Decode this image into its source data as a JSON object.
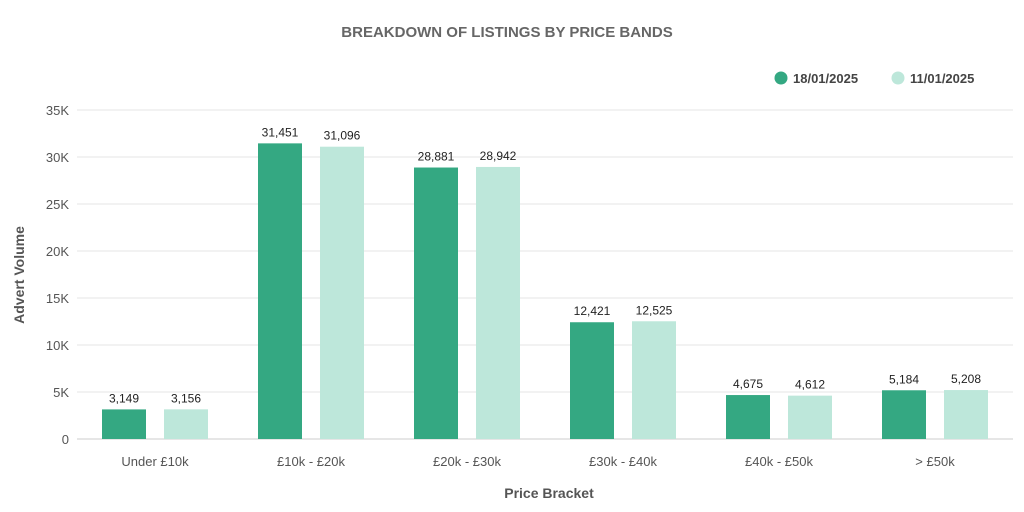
{
  "chart_data": {
    "type": "bar",
    "title": "BREAKDOWN OF LISTINGS BY PRICE BANDS",
    "xlabel": "Price Bracket",
    "ylabel": "Advert Volume",
    "categories": [
      "Under £10k",
      "£10k - £20k",
      "£20k - £30k",
      "£30k - £40k",
      "£40k - £50k",
      "> £50k"
    ],
    "series": [
      {
        "name": "18/01/2025",
        "color": "#34a882",
        "values": [
          3149,
          31451,
          28881,
          12421,
          4675,
          5184
        ],
        "labels": [
          "3,149",
          "31,451",
          "28,881",
          "12,421",
          "4,675",
          "5,184"
        ]
      },
      {
        "name": "11/01/2025",
        "color": "#bde7da",
        "values": [
          3156,
          31096,
          28942,
          12525,
          4612,
          5208
        ],
        "labels": [
          "3,156",
          "31,096",
          "28,942",
          "12,525",
          "4,612",
          "5,208"
        ]
      }
    ],
    "ylim": [
      0,
      35000
    ],
    "y_ticks": [
      0,
      5000,
      10000,
      15000,
      20000,
      25000,
      30000,
      35000
    ],
    "y_tick_labels": [
      "0",
      "5K",
      "10K",
      "15K",
      "20K",
      "25K",
      "30K",
      "35K"
    ],
    "grid": true,
    "legend_position": "top-right"
  }
}
